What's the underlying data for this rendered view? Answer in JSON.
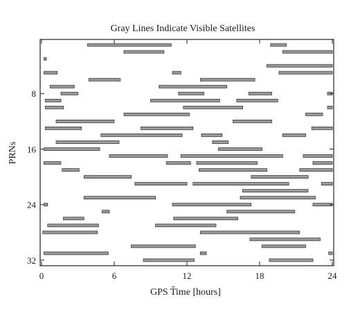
{
  "chart_data": {
    "type": "timeline",
    "title": "Gray Lines Indicate Visible Satellites",
    "xlabel": "GPS T̃ime [hours]",
    "ylabel": "PRNs",
    "xlim": [
      0,
      24
    ],
    "ylim": [
      1,
      32
    ],
    "y_inverted": true,
    "xticks": [
      0,
      6,
      12,
      18,
      24
    ],
    "yticks": [
      8,
      16,
      24,
      32
    ],
    "grid": false,
    "bar_color": "#9a9a9a",
    "series": [
      {
        "prn": 1,
        "intervals": [
          [
            3.8,
            10.7
          ],
          [
            18.9,
            20.2
          ]
        ]
      },
      {
        "prn": 2,
        "intervals": [
          [
            6.8,
            10.1
          ],
          [
            19.9,
            24.0
          ]
        ]
      },
      {
        "prn": 3,
        "intervals": [
          [
            0.2,
            0.4
          ]
        ]
      },
      {
        "prn": 4,
        "intervals": [
          [
            18.6,
            24.0
          ]
        ]
      },
      {
        "prn": 5,
        "intervals": [
          [
            0.2,
            1.3
          ],
          [
            10.8,
            11.5
          ],
          [
            19.6,
            24.0
          ]
        ]
      },
      {
        "prn": 6,
        "intervals": [
          [
            3.9,
            6.5
          ],
          [
            13.1,
            17.6
          ]
        ]
      },
      {
        "prn": 7,
        "intervals": [
          [
            0.7,
            2.7
          ],
          [
            9.7,
            15.3
          ]
        ]
      },
      {
        "prn": 8,
        "intervals": [
          [
            1.6,
            3.0
          ],
          [
            11.3,
            13.4
          ],
          [
            17.1,
            19.0
          ],
          [
            23.6,
            24.0
          ]
        ]
      },
      {
        "prn": 9,
        "intervals": [
          [
            0.3,
            1.6
          ],
          [
            9.0,
            14.7
          ],
          [
            16.1,
            19.5
          ]
        ]
      },
      {
        "prn": 10,
        "intervals": [
          [
            0.3,
            1.8
          ],
          [
            11.7,
            16.6
          ],
          [
            23.6,
            24.0
          ]
        ]
      },
      {
        "prn": 11,
        "intervals": [
          [
            6.8,
            12.2
          ],
          [
            21.8,
            23.2
          ]
        ]
      },
      {
        "prn": 12,
        "intervals": [
          [
            1.2,
            6.0
          ],
          [
            15.8,
            19.0
          ]
        ]
      },
      {
        "prn": 13,
        "intervals": [
          [
            0.3,
            3.3
          ],
          [
            8.2,
            12.5
          ],
          [
            22.3,
            24.0
          ]
        ]
      },
      {
        "prn": 14,
        "intervals": [
          [
            4.9,
            11.6
          ],
          [
            13.2,
            14.9
          ],
          [
            19.9,
            21.8
          ]
        ]
      },
      {
        "prn": 15,
        "intervals": [
          [
            1.2,
            6.4
          ],
          [
            14.1,
            15.4
          ]
        ]
      },
      {
        "prn": 16,
        "intervals": [
          [
            0.2,
            4.8
          ],
          [
            14.6,
            18.2
          ]
        ]
      },
      {
        "prn": 17,
        "intervals": [
          [
            5.6,
            10.4
          ],
          [
            11.5,
            19.9
          ],
          [
            21.6,
            24.0
          ]
        ]
      },
      {
        "prn": 18,
        "intervals": [
          [
            0.2,
            1.6
          ],
          [
            10.3,
            12.3
          ],
          [
            12.8,
            17.8
          ],
          [
            22.4,
            24.0
          ]
        ]
      },
      {
        "prn": 19,
        "intervals": [
          [
            1.7,
            3.1
          ],
          [
            13.0,
            18.6
          ],
          [
            21.3,
            24.0
          ]
        ]
      },
      {
        "prn": 20,
        "intervals": [
          [
            3.5,
            7.4
          ],
          [
            17.3,
            22.0
          ]
        ]
      },
      {
        "prn": 21,
        "intervals": [
          [
            7.7,
            12.0
          ],
          [
            12.5,
            20.4
          ],
          [
            23.1,
            24.0
          ]
        ]
      },
      {
        "prn": 22,
        "intervals": [
          [
            16.6,
            22.0
          ]
        ]
      },
      {
        "prn": 23,
        "intervals": [
          [
            3.5,
            9.4
          ],
          [
            16.4,
            22.6
          ]
        ]
      },
      {
        "prn": 24,
        "intervals": [
          [
            0.2,
            0.5
          ],
          [
            10.8,
            17.3
          ],
          [
            22.4,
            24.0
          ]
        ]
      },
      {
        "prn": 25,
        "intervals": [
          [
            5.0,
            5.6
          ],
          [
            15.3,
            20.9
          ]
        ]
      },
      {
        "prn": 26,
        "intervals": [
          [
            1.8,
            3.5
          ],
          [
            10.9,
            16.2
          ]
        ]
      },
      {
        "prn": 27,
        "intervals": [
          [
            0.5,
            4.7
          ],
          [
            9.4,
            14.4
          ]
        ]
      },
      {
        "prn": 28,
        "intervals": [
          [
            0.1,
            4.6
          ],
          [
            13.1,
            21.3
          ]
        ]
      },
      {
        "prn": 29,
        "intervals": [
          [
            17.2,
            23.0
          ]
        ]
      },
      {
        "prn": 30,
        "intervals": [
          [
            7.4,
            12.7
          ],
          [
            18.2,
            21.8
          ]
        ]
      },
      {
        "prn": 31,
        "intervals": [
          [
            0.2,
            5.5
          ],
          [
            13.1,
            13.6
          ],
          [
            23.7,
            24.0
          ]
        ]
      },
      {
        "prn": 32,
        "intervals": [
          [
            8.4,
            12.6
          ],
          [
            18.8,
            22.4
          ]
        ]
      }
    ]
  }
}
